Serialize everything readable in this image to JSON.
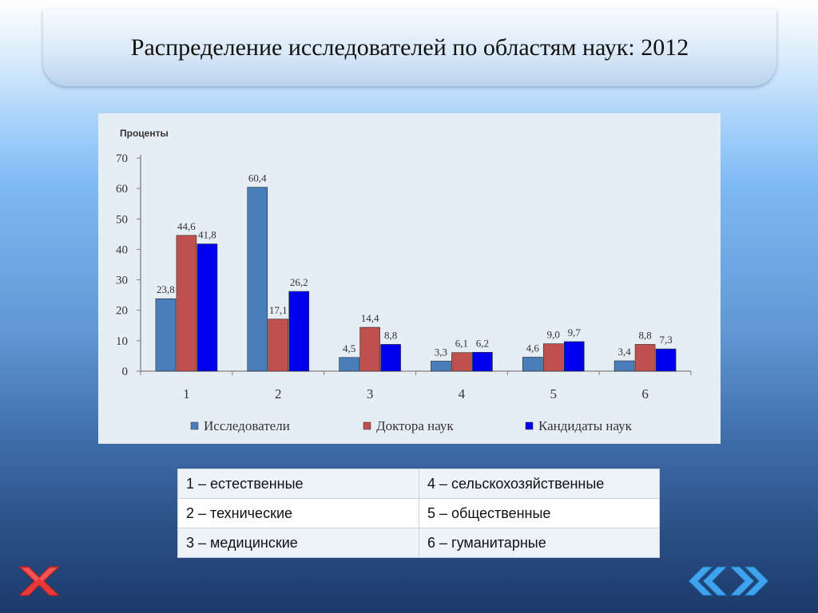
{
  "slide": {
    "title": "Распределение исследователей по областям наук: 2012"
  },
  "chart_data": {
    "type": "bar",
    "title": "",
    "ylabel": "Проценты",
    "xlabel": "",
    "ylim": [
      0,
      70
    ],
    "yticks": [
      0,
      10,
      20,
      30,
      40,
      50,
      60,
      70
    ],
    "categories": [
      "1",
      "2",
      "3",
      "4",
      "5",
      "6"
    ],
    "series": [
      {
        "name": "Исследователи",
        "color": "#4a7ebb",
        "values": [
          23.8,
          60.4,
          4.5,
          3.3,
          4.6,
          3.4
        ],
        "labels": [
          "23,8",
          "60,4",
          "4,5",
          "3,3",
          "4,6",
          "3,4"
        ]
      },
      {
        "name": "Доктора наук",
        "color": "#c0504d",
        "values": [
          44.6,
          17.1,
          14.4,
          6.1,
          9.0,
          8.8
        ],
        "labels": [
          "44,6",
          "17,1",
          "14,4",
          "6,1",
          "9,0",
          "8,8"
        ]
      },
      {
        "name": "Кандидаты наук",
        "color": "#0000ee",
        "values": [
          41.8,
          26.2,
          8.8,
          6.2,
          9.7,
          7.3
        ],
        "labels": [
          "41,8",
          "26,2",
          "8,8",
          "6,2",
          "9,7",
          "7,3"
        ]
      }
    ],
    "grid": false,
    "legend_position": "bottom"
  },
  "fields_table": {
    "rows": [
      [
        "1 – естественные",
        "4 – сельскохозяйственные"
      ],
      [
        "2 – технические",
        "5 – общественные"
      ],
      [
        "3 – медицинские",
        "6 – гуманитарные"
      ]
    ]
  },
  "icons": {
    "close": "close-x-icon",
    "back": "back-arrows-icon",
    "forward": "forward-arrows-icon"
  },
  "colors": {
    "close_icon": "#e8393a",
    "nav_icon": "#3fa3ee"
  }
}
